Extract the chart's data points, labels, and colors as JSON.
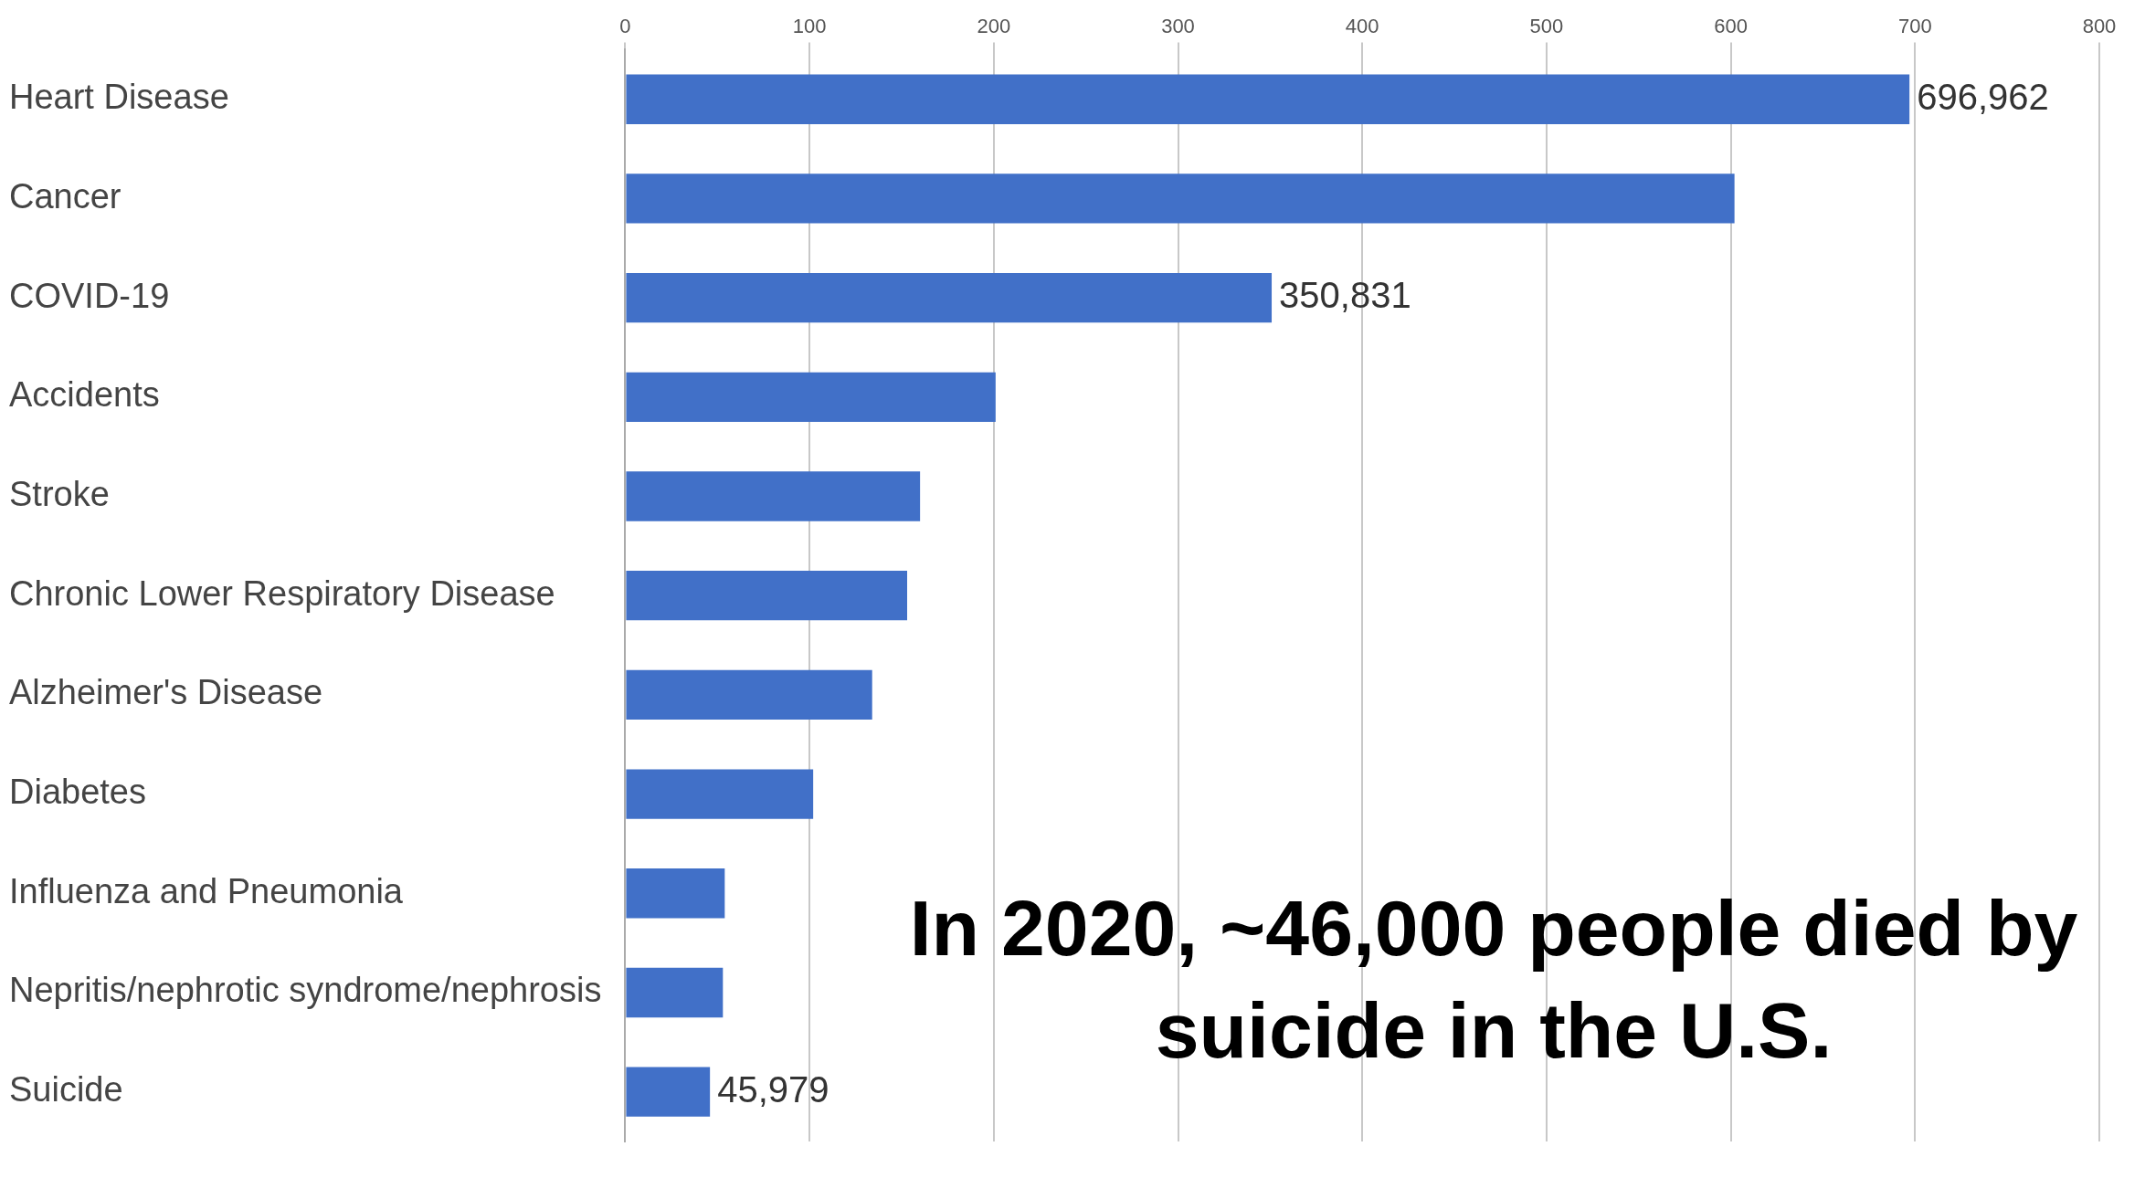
{
  "chart_data": {
    "type": "bar",
    "orientation": "horizontal",
    "categories": [
      "Heart Disease",
      "Cancer",
      "COVID-19",
      "Accidents",
      "Stroke",
      "Chronic Lower Respiratory Disease",
      "Alzheimer's Disease",
      "Diabetes",
      "Influenza and Pneumonia",
      "Nepritis/nephrotic syndrome/nephrosis",
      "Suicide"
    ],
    "values": [
      696.962,
      602,
      350.831,
      201,
      160,
      153,
      134,
      102,
      54,
      53,
      45.979
    ],
    "color": "#4170c8",
    "xlim": [
      0,
      800
    ],
    "xticks": [
      0,
      100,
      200,
      300,
      400,
      500,
      600,
      700,
      800
    ],
    "grid": "x",
    "annotations": [
      {
        "text": "696,962",
        "x": 696.962,
        "y": "Heart Disease"
      },
      {
        "text": "350,831",
        "x": 350.831,
        "y": "COVID-19"
      },
      {
        "text": "45,979",
        "x": 45.979,
        "y": "Suicide"
      },
      "In 2020, ~46,000 people died by suicide in the U.S."
    ]
  }
}
